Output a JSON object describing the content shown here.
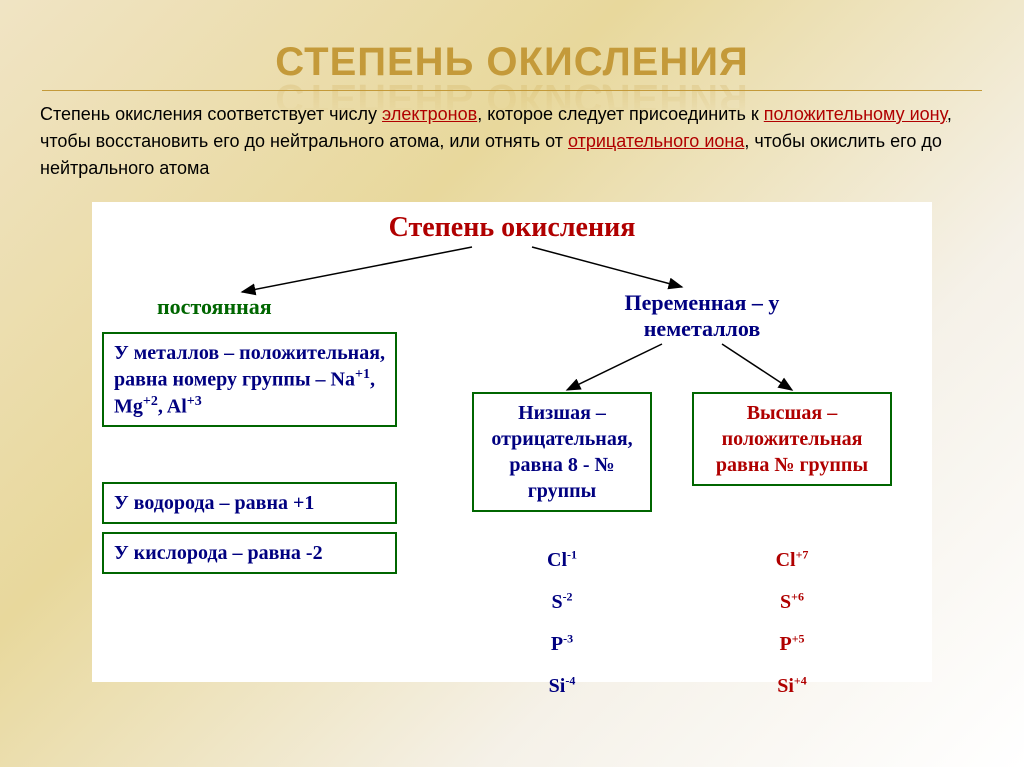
{
  "title": "СТЕПЕНЬ ОКИСЛЕНИЯ",
  "definition": {
    "t1": "Степень окисления соответствует числу ",
    "link1": "электронов",
    "t2": ", которое следует присоединить к ",
    "link2": "положительному иону",
    "t3": ", чтобы восстановить его до нейтрального атома, или отнять от ",
    "link3": "отрицательного иона",
    "t4": ", чтобы окислить его до нейтрального атома"
  },
  "diagram": {
    "title": "Степень окисления",
    "left_branch_label": "постоянная",
    "right_branch_label": "Переменная – у неметаллов",
    "box_metals_html": "У металлов – положительная, равна номеру группы – Na<sup>+1</sup>, Mg<sup>+2</sup>, Al<sup>+3</sup>",
    "box_hydrogen": "У водорода – равна +1",
    "box_oxygen": "У кислорода – равна -2",
    "box_lowest": "Низшая – отрицательная, равна 8 - № группы",
    "box_highest": "Высшая – положительная равна № группы",
    "examples_lowest": [
      "Cl<sup>-1</sup>",
      "S<sup>-2</sup>",
      "P<sup>-3</sup>",
      "Si<sup>-4</sup>"
    ],
    "examples_highest": [
      "Cl<sup>+7</sup>",
      "S<sup>+6</sup>",
      "P<sup>+5</sup>",
      "Si<sup>+4</sup>"
    ]
  },
  "colors": {
    "title_color": "#c49a3a",
    "red": "#b00000",
    "green": "#006600",
    "navy": "#000080",
    "arrow_stroke": "#000000",
    "background_white": "#ffffff"
  }
}
